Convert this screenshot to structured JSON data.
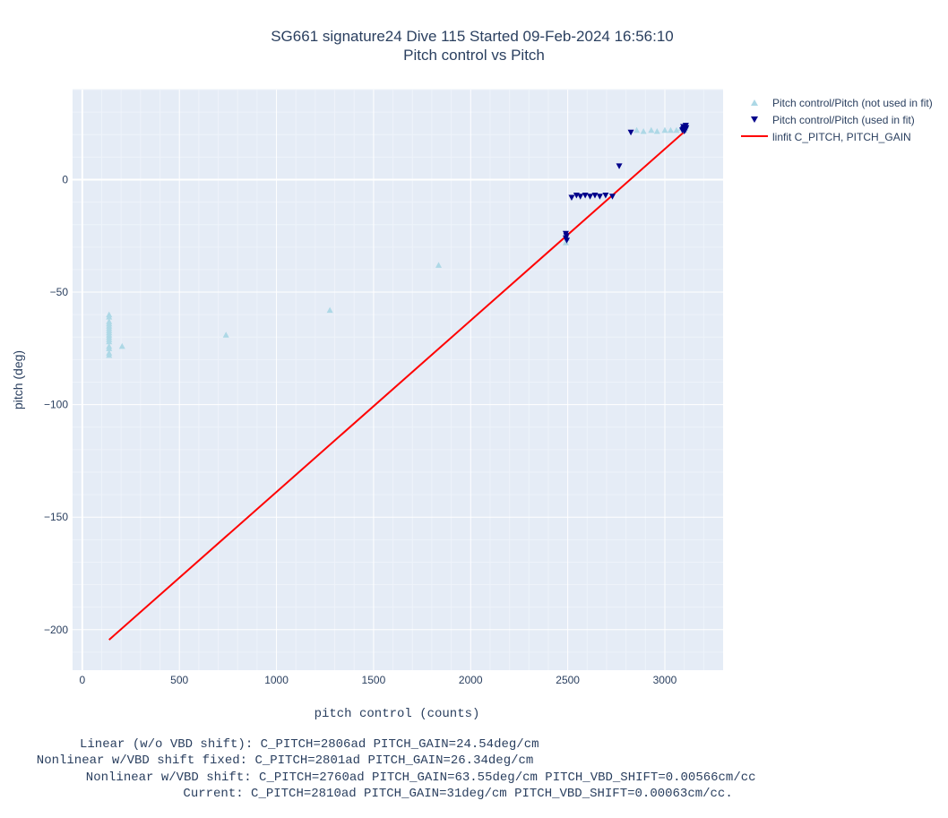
{
  "chart_data": {
    "type": "scatter",
    "title": "SG661 signature24 Dive 115 Started 09-Feb-2024 16:56:10",
    "subtitle": "Pitch control vs Pitch",
    "xlabel": "pitch control (counts)",
    "ylabel": "pitch (deg)",
    "xlim": [
      -50,
      3300
    ],
    "ylim": [
      -218,
      40
    ],
    "xticks": [
      0,
      500,
      1000,
      1500,
      2000,
      2500,
      3000
    ],
    "xtick_labels": [
      "0",
      "500",
      "1000",
      "1500",
      "2000",
      "2500",
      "3000"
    ],
    "yticks": [
      -200,
      -150,
      -100,
      -50,
      0
    ],
    "ytick_labels": [
      "−200",
      "−150",
      "−100",
      "−50",
      "0"
    ],
    "grid": true,
    "legend_position": "top-right",
    "series": [
      {
        "name": "Pitch control/Pitch (not used in fit)",
        "marker": "triangle-up",
        "color": "#add8e6",
        "points": [
          [
            138,
            -60
          ],
          [
            138,
            -61
          ],
          [
            138,
            -63
          ],
          [
            138,
            -64
          ],
          [
            138,
            -65
          ],
          [
            138,
            -66
          ],
          [
            138,
            -67
          ],
          [
            138,
            -68
          ],
          [
            138,
            -69
          ],
          [
            138,
            -70
          ],
          [
            138,
            -71
          ],
          [
            138,
            -72
          ],
          [
            138,
            -74
          ],
          [
            138,
            -75
          ],
          [
            138,
            -77
          ],
          [
            138,
            -78
          ],
          [
            205,
            -74
          ],
          [
            740,
            -69
          ],
          [
            1275,
            -58
          ],
          [
            1835,
            -38
          ],
          [
            2490,
            -28
          ],
          [
            2495,
            -26
          ],
          [
            2855,
            22
          ],
          [
            2890,
            21.5
          ],
          [
            2930,
            22
          ],
          [
            2960,
            21.5
          ],
          [
            3000,
            22
          ],
          [
            3030,
            22
          ],
          [
            3060,
            22
          ],
          [
            3085,
            23
          ],
          [
            3095,
            24
          ],
          [
            3100,
            22
          ],
          [
            3105,
            23
          ],
          [
            3110,
            24
          ]
        ]
      },
      {
        "name": "Pitch control/Pitch (used in fit)",
        "marker": "triangle-down",
        "color": "#00008b",
        "points": [
          [
            2490,
            -24
          ],
          [
            2490,
            -26
          ],
          [
            2495,
            -27
          ],
          [
            2493,
            -25
          ],
          [
            2520,
            -8
          ],
          [
            2545,
            -7
          ],
          [
            2565,
            -7.5
          ],
          [
            2590,
            -7
          ],
          [
            2615,
            -7.5
          ],
          [
            2640,
            -7
          ],
          [
            2665,
            -7.5
          ],
          [
            2695,
            -7
          ],
          [
            2730,
            -7.5
          ],
          [
            2765,
            6
          ],
          [
            2825,
            21
          ],
          [
            3090,
            22
          ],
          [
            3095,
            22.5
          ],
          [
            3100,
            23
          ],
          [
            3105,
            22
          ],
          [
            3110,
            23
          ],
          [
            3100,
            21.5
          ],
          [
            3108,
            24
          ],
          [
            3095,
            23.5
          ]
        ]
      },
      {
        "name": "linfit C_PITCH, PITCH_GAIN",
        "type": "line",
        "color": "#ff0000",
        "x": [
          138,
          3110
        ],
        "y": [
          -204.5,
          22
        ]
      }
    ]
  },
  "notes": [
    "     Linear (w/o VBD shift): C_PITCH=2806ad PITCH_GAIN=24.54deg/cm",
    "  Nonlinear w/VBD shift fixed: C_PITCH=2801ad PITCH_GAIN=26.34deg/cm",
    "       Nonlinear w/VBD shift: C_PITCH=2760ad PITCH_GAIN=63.55deg/cm PITCH_VBD_SHIFT=0.00566cm/cc",
    "                     Current: C_PITCH=2810ad PITCH_GAIN=31deg/cm PITCH_VBD_SHIFT=0.00063cm/cc."
  ]
}
